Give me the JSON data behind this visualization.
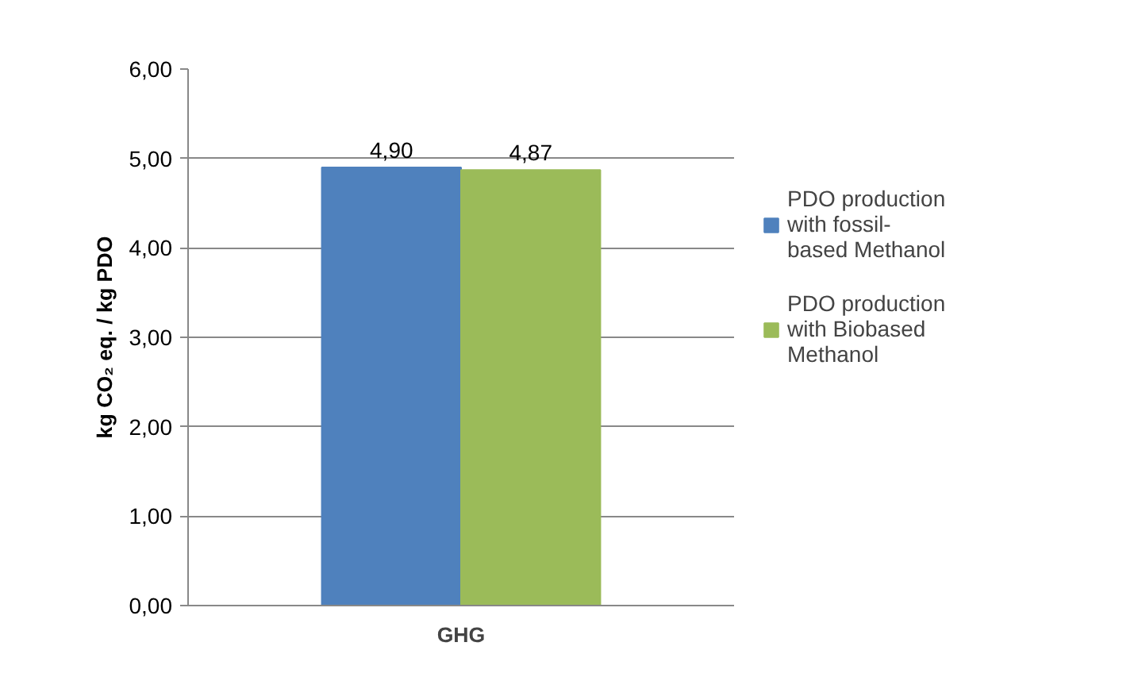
{
  "chart_data": {
    "type": "bar",
    "categories": [
      "GHG"
    ],
    "ylabel": "kg CO₂ eq. / kg PDO",
    "series": [
      {
        "name": "PDO production with fossil-based Methanol",
        "color": "#4f81bd",
        "values": [
          4.9
        ],
        "value_labels": [
          "4,90"
        ]
      },
      {
        "name": "PDO production with Biobased Methanol",
        "color": "#9bbb59",
        "values": [
          4.87
        ],
        "value_labels": [
          "4,87"
        ]
      }
    ],
    "ylim": [
      0,
      6
    ],
    "yticks": [
      {
        "value": 0,
        "label": "0,00"
      },
      {
        "value": 1,
        "label": "1,00"
      },
      {
        "value": 2,
        "label": "2,00"
      },
      {
        "value": 3,
        "label": "3,00"
      },
      {
        "value": 4,
        "label": "4,00"
      },
      {
        "value": 5,
        "label": "5,00"
      },
      {
        "value": 6,
        "label": "6,00"
      }
    ],
    "grid": "y",
    "legend": "right"
  }
}
